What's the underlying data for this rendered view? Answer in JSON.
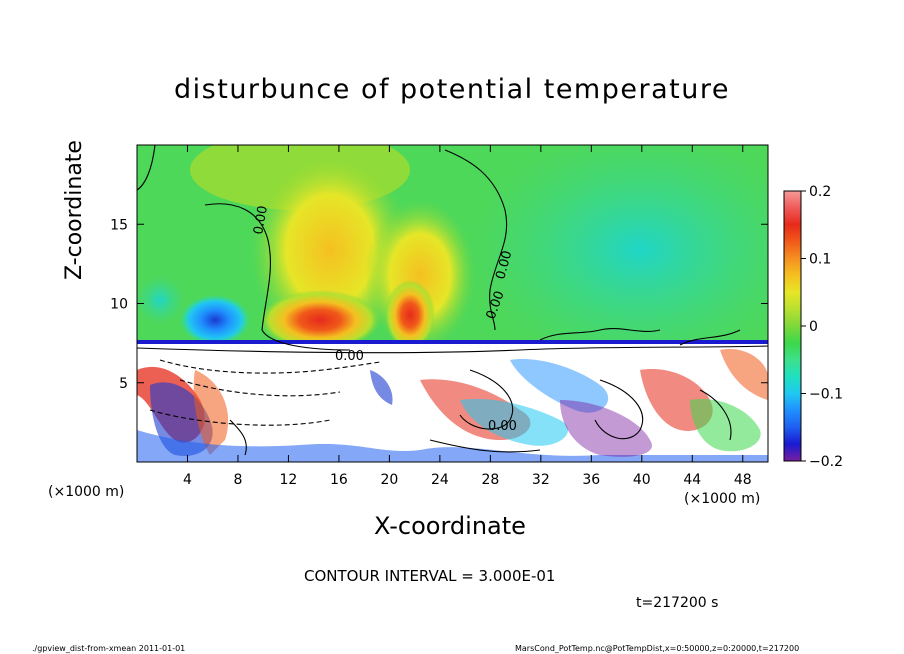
{
  "chart_data": {
    "type": "heatmap",
    "title": "disturbunce of potential temperature",
    "xlabel": "X-coordinate",
    "ylabel": "Z-coordinate",
    "x_unit_label": "(×1000 m)",
    "y_unit_label": "(×1000 m)",
    "xlim": [
      0,
      50
    ],
    "ylim": [
      0,
      20
    ],
    "x_ticks": [
      4,
      8,
      12,
      16,
      20,
      24,
      28,
      32,
      36,
      40,
      44,
      48
    ],
    "y_ticks": [
      5,
      10,
      15
    ],
    "colorbar": {
      "range": [
        -0.2,
        0.2
      ],
      "tick_values": [
        -0.2,
        -0.1,
        0,
        0.1,
        0.2
      ],
      "tick_labels": [
        "−0.2",
        "−0.1",
        "0",
        "0.1",
        "0.2"
      ],
      "colors": [
        "#7a1fa0",
        "#1a1ad0",
        "#1f5ff0",
        "#1f8fff",
        "#20c8f0",
        "#20e0c0",
        "#3ce08a",
        "#3cd84a",
        "#7ed83a",
        "#b8e030",
        "#e6e628",
        "#f5c020",
        "#f59020",
        "#f05a1a",
        "#e62a1a",
        "#f05a5a",
        "#f79a9a"
      ]
    },
    "contour_labels": [
      "0.00",
      "0.00",
      "0.00",
      "0.00",
      "0.00"
    ],
    "contour_interval_text": "CONTOUR INTERVAL = 3.000E-01",
    "time_text": "t=217200 s"
  },
  "footer": {
    "left": "./gpview_dist-from-xmean  2011-01-01",
    "right": "MarsCond_PotTemp.nc@PotTempDist,x=0:50000,z=0:20000,t=217200"
  }
}
